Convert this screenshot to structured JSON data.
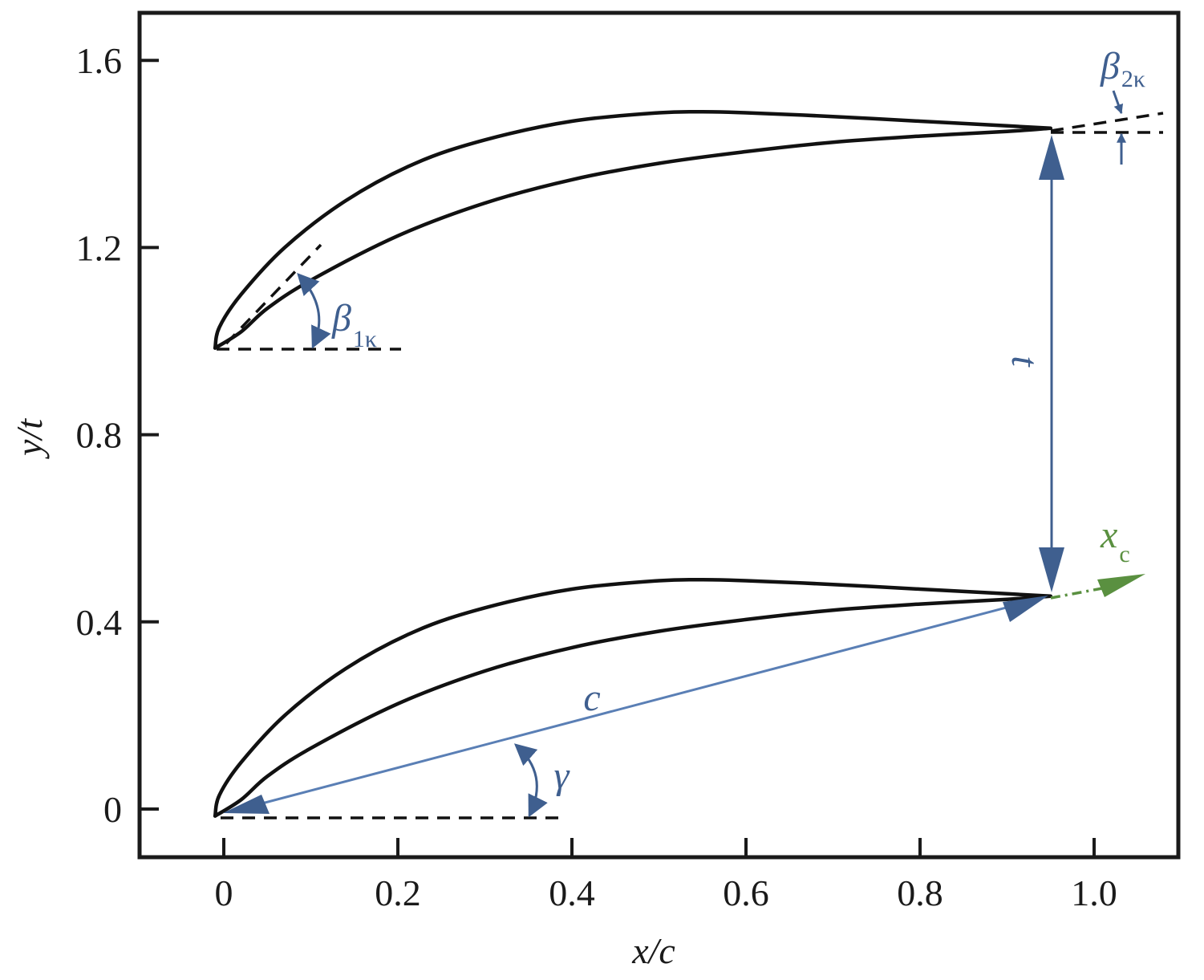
{
  "axes": {
    "xlabel": "x/c",
    "ylabel": "y/t",
    "xlim": [
      -0.1,
      1.1
    ],
    "ylim": [
      -0.1,
      1.72
    ],
    "xticks": [
      {
        "value": 0,
        "label": "0"
      },
      {
        "value": 0.2,
        "label": "0.2"
      },
      {
        "value": 0.4,
        "label": "0.4"
      },
      {
        "value": 0.6,
        "label": "0.6"
      },
      {
        "value": 0.8,
        "label": "0.8"
      },
      {
        "value": 1.0,
        "label": "1.0"
      }
    ],
    "yticks": [
      {
        "value": 0,
        "label": "0"
      },
      {
        "value": 0.4,
        "label": "0.4"
      },
      {
        "value": 0.8,
        "label": "0.8"
      },
      {
        "value": 1.2,
        "label": "1.2"
      },
      {
        "value": 1.6,
        "label": "1.6"
      }
    ]
  },
  "labels": {
    "beta": "β",
    "beta1_sub": "1κ",
    "beta2_sub": "2κ",
    "pitch": "t",
    "chord": "c",
    "stagger": "γ",
    "xc": "x",
    "xc_sub": "c"
  },
  "colors": {
    "blade": "#111111",
    "annotation": "#3f5f8f",
    "chord_line": "#5a7fb5",
    "xc_axis": "#5a9040"
  },
  "blade_pitch": 1.0,
  "blade": {
    "leading_edge": [
      -0.01,
      -0.015
    ],
    "trailing_edge": [
      0.95,
      0.455
    ],
    "suction_side": [
      [
        -0.01,
        -0.015
      ],
      [
        -0.005,
        0.03
      ],
      [
        0.02,
        0.1
      ],
      [
        0.07,
        0.2
      ],
      [
        0.14,
        0.3
      ],
      [
        0.22,
        0.38
      ],
      [
        0.3,
        0.43
      ],
      [
        0.4,
        0.47
      ],
      [
        0.5,
        0.488
      ],
      [
        0.55,
        0.49
      ],
      [
        0.6,
        0.488
      ],
      [
        0.7,
        0.48
      ],
      [
        0.8,
        0.47
      ],
      [
        0.9,
        0.46
      ],
      [
        0.95,
        0.455
      ]
    ],
    "pressure_side": [
      [
        0.95,
        0.455
      ],
      [
        0.9,
        0.448
      ],
      [
        0.8,
        0.438
      ],
      [
        0.7,
        0.425
      ],
      [
        0.6,
        0.405
      ],
      [
        0.5,
        0.38
      ],
      [
        0.4,
        0.345
      ],
      [
        0.3,
        0.295
      ],
      [
        0.2,
        0.225
      ],
      [
        0.1,
        0.13
      ],
      [
        0.05,
        0.07
      ],
      [
        0.02,
        0.02
      ],
      [
        -0.01,
        -0.015
      ]
    ]
  }
}
